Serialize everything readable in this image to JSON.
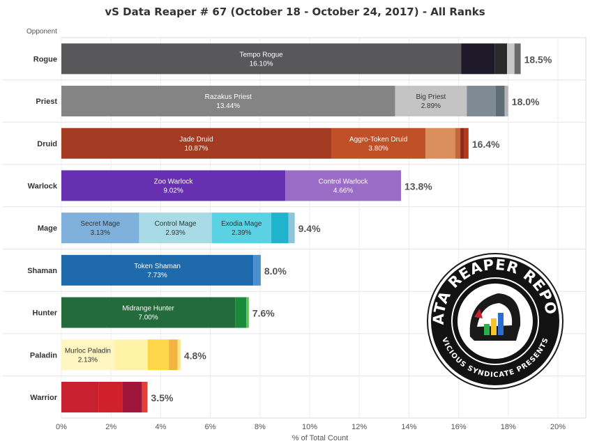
{
  "chart_data": {
    "type": "bar",
    "orientation": "horizontal-stacked",
    "title": "vS Data Reaper # 67 (October 18 - October 24, 2017) - All Ranks",
    "row_axis_label": "Opponent",
    "xlabel": "% of Total Count",
    "xlim": [
      0,
      20
    ],
    "xticks": [
      "0%",
      "2%",
      "4%",
      "6%",
      "8%",
      "10%",
      "12%",
      "14%",
      "16%",
      "18%",
      "20%"
    ],
    "grid": true,
    "rows": [
      {
        "class": "Rogue",
        "total": "18.5%",
        "segments": [
          {
            "name": "Tempo Rogue",
            "value": 16.1,
            "label": "16.10%",
            "color": "#58585a",
            "text_color": "#ffffff"
          },
          {
            "value": 1.35,
            "color": "#1e1a2a"
          },
          {
            "value": 0.5,
            "color": "#2a2a2a"
          },
          {
            "value": 0.3,
            "color": "#c8c8c8"
          },
          {
            "value": 0.25,
            "color": "#6a6a6a"
          }
        ]
      },
      {
        "class": "Priest",
        "total": "18.0%",
        "segments": [
          {
            "name": "Razakus Priest",
            "value": 13.44,
            "label": "13.44%",
            "color": "#848484",
            "text_color": "#ffffff"
          },
          {
            "name": "Big Priest",
            "value": 2.89,
            "label": "2.89%",
            "color": "#c4c4c4",
            "text_color": "#333333"
          },
          {
            "value": 1.17,
            "color": "#7f8b92"
          },
          {
            "value": 0.35,
            "color": "#5f6d75"
          },
          {
            "value": 0.15,
            "color": "#b5b5b5"
          }
        ]
      },
      {
        "class": "Druid",
        "total": "16.4%",
        "segments": [
          {
            "name": "Jade Druid",
            "value": 10.87,
            "label": "10.87%",
            "color": "#a33a22",
            "text_color": "#ffffff"
          },
          {
            "name": "Aggro-Token Druid",
            "value": 3.8,
            "label": "3.80%",
            "color": "#bf5028",
            "text_color": "#ffffff"
          },
          {
            "value": 1.2,
            "color": "#d98e5b"
          },
          {
            "value": 0.2,
            "color": "#c7653a"
          },
          {
            "value": 0.15,
            "color": "#8e2a18"
          },
          {
            "value": 0.18,
            "color": "#b53a1c"
          }
        ]
      },
      {
        "class": "Warlock",
        "total": "13.8%",
        "segments": [
          {
            "name": "Zoo Warlock",
            "value": 9.02,
            "label": "9.02%",
            "color": "#6630b0",
            "text_color": "#ffffff"
          },
          {
            "name": "Control Warlock",
            "value": 4.66,
            "label": "4.66%",
            "color": "#9b6cc6",
            "text_color": "#ffffff"
          }
        ]
      },
      {
        "class": "Mage",
        "total": "9.4%",
        "segments": [
          {
            "name": "Secret Mage",
            "value": 3.13,
            "label": "3.13%",
            "color": "#7fb1dc",
            "text_color": "#333333"
          },
          {
            "name": "Control Mage",
            "value": 2.93,
            "label": "2.93%",
            "color": "#a8dbe6",
            "text_color": "#333333"
          },
          {
            "name": "Exodia Mage",
            "value": 2.39,
            "label": "2.39%",
            "color": "#5bd1e4",
            "text_color": "#333333"
          },
          {
            "value": 0.7,
            "color": "#1fb4cc"
          },
          {
            "value": 0.25,
            "color": "#8fc5d8"
          }
        ]
      },
      {
        "class": "Shaman",
        "total": "8.0%",
        "segments": [
          {
            "name": "Token Shaman",
            "value": 7.73,
            "label": "7.73%",
            "color": "#1f6aaa",
            "text_color": "#ffffff"
          },
          {
            "value": 0.3,
            "color": "#4a90cc"
          }
        ]
      },
      {
        "class": "Hunter",
        "total": "7.6%",
        "segments": [
          {
            "name": "Midrange Hunter",
            "value": 7.0,
            "label": "7.00%",
            "color": "#236b3a",
            "text_color": "#ffffff"
          },
          {
            "value": 0.45,
            "color": "#1a8a3a"
          },
          {
            "value": 0.1,
            "color": "#5cbf5c"
          }
        ]
      },
      {
        "class": "Paladin",
        "total": "4.8%",
        "segments": [
          {
            "name": "Murloc Paladin",
            "value": 2.13,
            "label": "2.13%",
            "color": "#fff6c2",
            "text_color": "#333333"
          },
          {
            "value": 1.35,
            "color": "#fff3a8"
          },
          {
            "value": 0.85,
            "color": "#fdd64a"
          },
          {
            "value": 0.35,
            "color": "#f4b540"
          },
          {
            "value": 0.12,
            "color": "#f7e88c"
          }
        ]
      },
      {
        "class": "Warrior",
        "total": "3.5%",
        "segments": [
          {
            "value": 1.5,
            "color": "#c8202f"
          },
          {
            "value": 0.95,
            "color": "#d0212a"
          },
          {
            "value": 0.8,
            "color": "#a0153a"
          },
          {
            "value": 0.22,
            "color": "#e0403a"
          }
        ]
      }
    ]
  },
  "logo": {
    "top_text": "DATA REAPER REPORT",
    "bottom_text": "VICIOUS SYNDICATE PRESENTS"
  }
}
